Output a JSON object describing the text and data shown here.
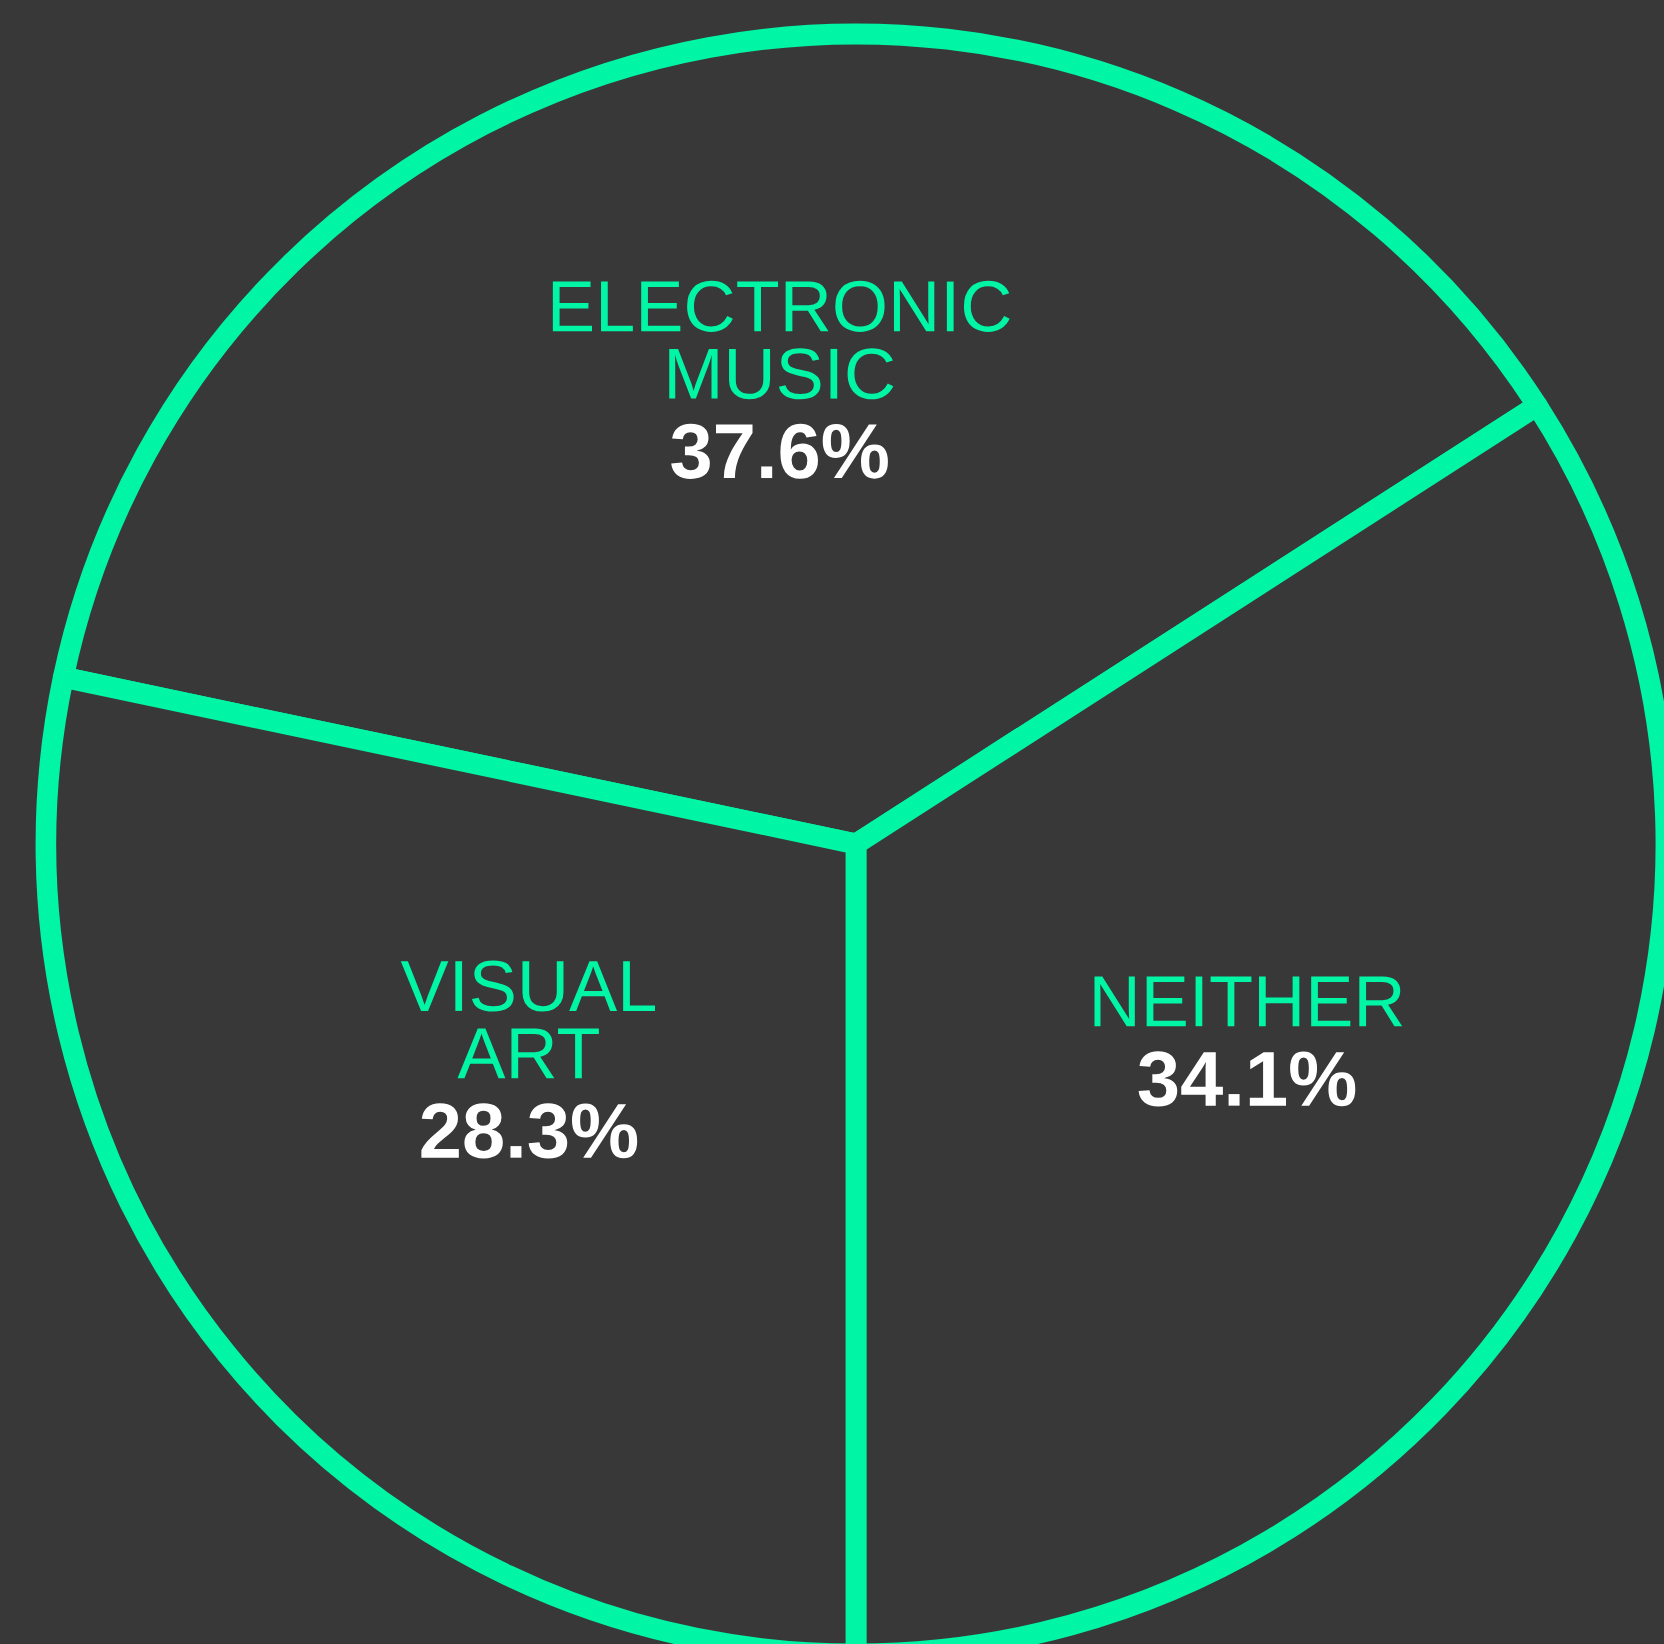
{
  "chart_data": {
    "type": "pie",
    "categories": [
      "ELECTRONIC\nMUSIC",
      "NEITHER",
      "VISUAL\nART"
    ],
    "values": [
      37.6,
      34.1,
      28.3
    ],
    "colors": [
      "#383838",
      "#383838",
      "#383838"
    ],
    "value_labels": [
      "37.6%",
      "34.1%",
      "28.3%"
    ],
    "legend": false
  }
}
